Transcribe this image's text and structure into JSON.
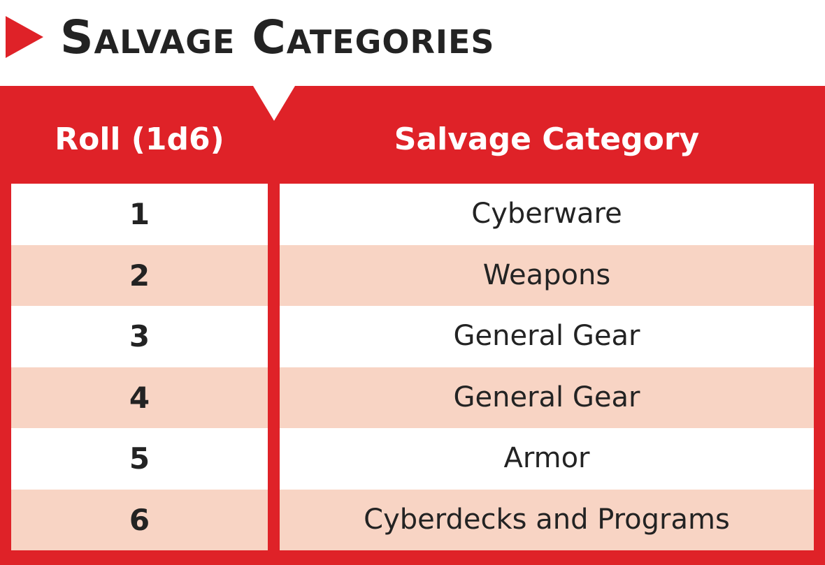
{
  "title": "Salvage Categories",
  "colors": {
    "accent": "#df2228",
    "row_alt": "#f8d4c4",
    "row_plain": "#ffffff",
    "text": "#232323"
  },
  "table": {
    "headers": {
      "roll": "Roll (1d6)",
      "category": "Salvage Category"
    },
    "rows": [
      {
        "roll": "1",
        "category": "Cyberware"
      },
      {
        "roll": "2",
        "category": "Weapons"
      },
      {
        "roll": "3",
        "category": "General Gear"
      },
      {
        "roll": "4",
        "category": "General Gear"
      },
      {
        "roll": "5",
        "category": "Armor"
      },
      {
        "roll": "6",
        "category": "Cyberdecks and Programs"
      }
    ]
  }
}
